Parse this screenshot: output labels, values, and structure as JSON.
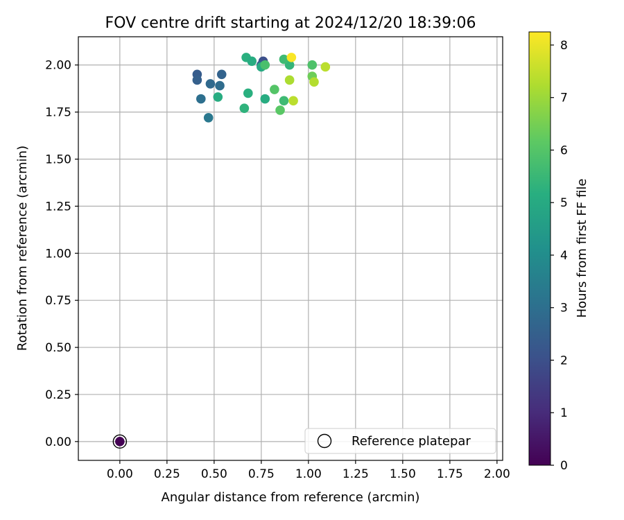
{
  "chart_data": {
    "type": "scatter",
    "title": "FOV centre drift starting at 2024/12/20 18:39:06",
    "xlabel": "Angular distance from reference (arcmin)",
    "ylabel": "Rotation from reference (arcmin)",
    "xlim": [
      -0.22,
      2.03
    ],
    "ylim": [
      -0.1,
      2.15
    ],
    "xticks": [
      0.0,
      0.25,
      0.5,
      0.75,
      1.0,
      1.25,
      1.5,
      1.75,
      2.0
    ],
    "yticks": [
      0.0,
      0.25,
      0.5,
      0.75,
      1.0,
      1.25,
      1.5,
      1.75,
      2.0
    ],
    "tick_format": "0.00",
    "grid": true,
    "colormap": "viridis",
    "colorbar": {
      "label": "Hours from first FF file",
      "min": 0,
      "max": 8.25,
      "ticks": [
        0,
        1,
        2,
        3,
        4,
        5,
        6,
        7,
        8
      ]
    },
    "reference": {
      "x": 0.0,
      "y": 0.0,
      "hours": 0.0
    },
    "legend": {
      "label": "Reference platepar",
      "location": "lower-right"
    },
    "points": [
      {
        "x": 0.76,
        "y": 2.02,
        "hours": 2.0
      },
      {
        "x": 0.75,
        "y": 2.0,
        "hours": 2.3
      },
      {
        "x": 0.41,
        "y": 1.95,
        "hours": 2.4
      },
      {
        "x": 0.41,
        "y": 1.92,
        "hours": 2.5
      },
      {
        "x": 0.54,
        "y": 1.95,
        "hours": 2.6
      },
      {
        "x": 0.48,
        "y": 1.9,
        "hours": 2.8
      },
      {
        "x": 0.53,
        "y": 1.89,
        "hours": 2.9
      },
      {
        "x": 0.43,
        "y": 1.82,
        "hours": 3.0
      },
      {
        "x": 0.47,
        "y": 1.72,
        "hours": 3.3
      },
      {
        "x": 0.67,
        "y": 2.04,
        "hours": 5.2
      },
      {
        "x": 0.7,
        "y": 2.02,
        "hours": 5.1
      },
      {
        "x": 0.75,
        "y": 1.99,
        "hours": 5.0
      },
      {
        "x": 0.52,
        "y": 1.83,
        "hours": 5.1
      },
      {
        "x": 0.68,
        "y": 1.85,
        "hours": 5.2
      },
      {
        "x": 0.66,
        "y": 1.77,
        "hours": 5.3
      },
      {
        "x": 0.77,
        "y": 1.82,
        "hours": 5.1
      },
      {
        "x": 0.9,
        "y": 2.0,
        "hours": 5.4
      },
      {
        "x": 0.87,
        "y": 2.03,
        "hours": 5.6
      },
      {
        "x": 0.87,
        "y": 1.81,
        "hours": 5.6
      },
      {
        "x": 0.77,
        "y": 2.0,
        "hours": 5.8
      },
      {
        "x": 0.82,
        "y": 1.87,
        "hours": 6.0
      },
      {
        "x": 0.85,
        "y": 1.76,
        "hours": 6.1
      },
      {
        "x": 1.02,
        "y": 2.0,
        "hours": 5.9
      },
      {
        "x": 1.02,
        "y": 1.94,
        "hours": 6.4
      },
      {
        "x": 0.9,
        "y": 1.92,
        "hours": 7.2
      },
      {
        "x": 0.92,
        "y": 1.81,
        "hours": 7.4
      },
      {
        "x": 1.03,
        "y": 1.91,
        "hours": 7.3
      },
      {
        "x": 1.09,
        "y": 1.99,
        "hours": 7.4
      },
      {
        "x": 0.91,
        "y": 2.04,
        "hours": 8.2
      }
    ]
  }
}
